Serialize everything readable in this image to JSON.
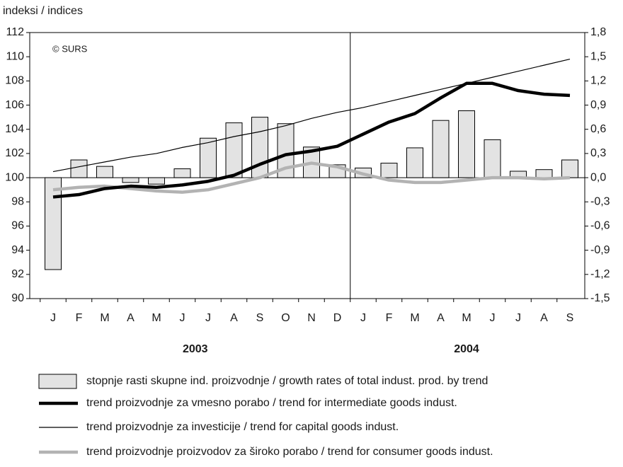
{
  "chart_data": {
    "type": "combo",
    "y_label": "indeksi / indices",
    "annotation": "© SURS",
    "categories": [
      "J",
      "F",
      "M",
      "A",
      "M",
      "J",
      "J",
      "A",
      "S",
      "O",
      "N",
      "D",
      "J",
      "F",
      "M",
      "A",
      "M",
      "J",
      "J",
      "A",
      "S"
    ],
    "groups": [
      {
        "label": "2003",
        "span": 12
      },
      {
        "label": "2004",
        "span": 9
      }
    ],
    "ylim": [
      90,
      112
    ],
    "yticks": [
      90,
      92,
      94,
      96,
      98,
      100,
      102,
      104,
      106,
      108,
      110,
      112
    ],
    "y2lim": [
      -1.5,
      1.8
    ],
    "y2ticks": [
      {
        "value": -1.5,
        "label": "-1,5"
      },
      {
        "value": -1.2,
        "label": "-1,2"
      },
      {
        "value": -0.9,
        "label": "-0,9"
      },
      {
        "value": -0.6,
        "label": "-0,6"
      },
      {
        "value": -0.3,
        "label": "-0,3"
      },
      {
        "value": 0,
        "label": "0,0"
      },
      {
        "value": 0.3,
        "label": "0,3"
      },
      {
        "value": 0.6,
        "label": "0,6"
      },
      {
        "value": 0.9,
        "label": "0,9"
      },
      {
        "value": 1.2,
        "label": "1,2"
      },
      {
        "value": 1.5,
        "label": "1,5"
      },
      {
        "value": 1.8,
        "label": "1,8"
      }
    ],
    "series": [
      {
        "name": "stopnje rasti skupne ind. proizvodnje / growth rates of total indust. prod. by trend",
        "type": "bar",
        "axis": "y2",
        "color": "#e3e3e3",
        "values": [
          -1.14,
          0.22,
          0.14,
          -0.06,
          -0.08,
          0.11,
          0.49,
          0.68,
          0.75,
          0.67,
          0.38,
          0.16,
          0.12,
          0.18,
          0.37,
          0.71,
          0.83,
          0.47,
          0.08,
          0.1,
          0.22
        ]
      },
      {
        "name": "trend proizvodnje za vmesno porabo / trend for intermediate goods indust.",
        "type": "line",
        "color": "#000000",
        "width": 4.5,
        "values": [
          98.4,
          98.6,
          99.1,
          99.3,
          99.2,
          99.4,
          99.7,
          100.2,
          101.1,
          101.9,
          102.2,
          102.6,
          103.6,
          104.6,
          105.3,
          106.6,
          107.8,
          107.8,
          107.2,
          106.9,
          106.8
        ]
      },
      {
        "name": "trend proizvodnje za investicije / trend for capital goods indust.",
        "type": "line",
        "color": "#000000",
        "width": 1.2,
        "values": [
          100.5,
          100.9,
          101.3,
          101.7,
          102.0,
          102.5,
          102.9,
          103.4,
          103.8,
          104.3,
          104.9,
          105.4,
          105.8,
          106.3,
          106.8,
          107.3,
          107.8,
          108.3,
          108.8,
          109.3,
          109.8
        ]
      },
      {
        "name": "trend proizvodnje proizvodov za široko porabo / trend for consumer goods indust.",
        "type": "line",
        "color": "#b3b3b3",
        "width": 4.5,
        "values": [
          99.0,
          99.2,
          99.3,
          99.1,
          98.9,
          98.8,
          99.0,
          99.5,
          100.0,
          100.8,
          101.2,
          100.9,
          100.3,
          99.8,
          99.6,
          99.6,
          99.8,
          100.0,
          100.0,
          99.9,
          100.0
        ]
      }
    ]
  }
}
